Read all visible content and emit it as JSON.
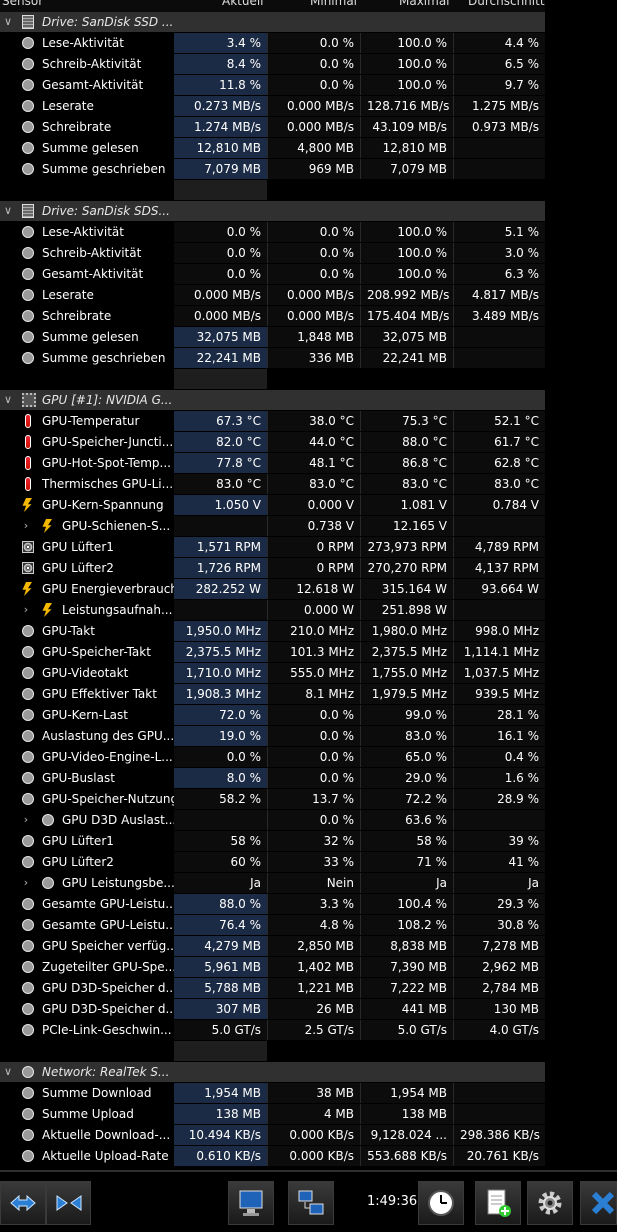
{
  "header": {
    "columns": [
      "Sensor",
      "Aktuell",
      "Minimal",
      "Maximal",
      "Durchschnitt"
    ]
  },
  "rows": [
    {
      "type": "header",
      "icon": "drive-icon",
      "label": "Drive: SanDisk SSD ...",
      "chev": "v"
    },
    {
      "type": "data",
      "icon": "clock-icon",
      "label": "Lese-Aktivität",
      "v": [
        "3.4 %",
        "0.0 %",
        "100.0 %",
        "4.4 %"
      ],
      "hl": true
    },
    {
      "type": "data",
      "icon": "clock-icon",
      "label": "Schreib-Aktivität",
      "v": [
        "8.4 %",
        "0.0 %",
        "100.0 %",
        "6.5 %"
      ],
      "hl": true
    },
    {
      "type": "data",
      "icon": "clock-icon",
      "label": "Gesamt-Aktivität",
      "v": [
        "11.8 %",
        "0.0 %",
        "100.0 %",
        "9.7 %"
      ],
      "hl": true
    },
    {
      "type": "data",
      "icon": "clock-icon",
      "label": "Leserate",
      "v": [
        "0.273 MB/s",
        "0.000 MB/s",
        "128.716 MB/s",
        "1.275 MB/s"
      ],
      "hl": true
    },
    {
      "type": "data",
      "icon": "clock-icon",
      "label": "Schreibrate",
      "v": [
        "1.274 MB/s",
        "0.000 MB/s",
        "43.109 MB/s",
        "0.973 MB/s"
      ],
      "hl": true
    },
    {
      "type": "data",
      "icon": "clock-icon",
      "label": "Summe gelesen",
      "v": [
        "12,810 MB",
        "4,800 MB",
        "12,810 MB",
        ""
      ],
      "hl": true
    },
    {
      "type": "data",
      "icon": "clock-icon",
      "label": "Summe geschrieben",
      "v": [
        "7,079 MB",
        "969 MB",
        "7,079 MB",
        ""
      ],
      "hl": true
    },
    {
      "type": "blank"
    },
    {
      "type": "header",
      "icon": "drive-icon",
      "label": "Drive: SanDisk SDS...",
      "chev": "v"
    },
    {
      "type": "data",
      "icon": "clock-icon",
      "label": "Lese-Aktivität",
      "v": [
        "0.0 %",
        "0.0 %",
        "100.0 %",
        "5.1 %"
      ]
    },
    {
      "type": "data",
      "icon": "clock-icon",
      "label": "Schreib-Aktivität",
      "v": [
        "0.0 %",
        "0.0 %",
        "100.0 %",
        "3.0 %"
      ]
    },
    {
      "type": "data",
      "icon": "clock-icon",
      "label": "Gesamt-Aktivität",
      "v": [
        "0.0 %",
        "0.0 %",
        "100.0 %",
        "6.3 %"
      ]
    },
    {
      "type": "data",
      "icon": "clock-icon",
      "label": "Leserate",
      "v": [
        "0.000 MB/s",
        "0.000 MB/s",
        "208.992 MB/s",
        "4.817 MB/s"
      ]
    },
    {
      "type": "data",
      "icon": "clock-icon",
      "label": "Schreibrate",
      "v": [
        "0.000 MB/s",
        "0.000 MB/s",
        "175.404 MB/s",
        "3.489 MB/s"
      ]
    },
    {
      "type": "data",
      "icon": "clock-icon",
      "label": "Summe gelesen",
      "v": [
        "32,075 MB",
        "1,848 MB",
        "32,075 MB",
        ""
      ],
      "hl": true
    },
    {
      "type": "data",
      "icon": "clock-icon",
      "label": "Summe geschrieben",
      "v": [
        "22,241 MB",
        "336 MB",
        "22,241 MB",
        ""
      ],
      "hl": true
    },
    {
      "type": "blank"
    },
    {
      "type": "header",
      "icon": "chip-icon",
      "label": "GPU [#1]: NVIDIA G...",
      "chev": "v"
    },
    {
      "type": "data",
      "icon": "thermometer-icon",
      "label": "GPU-Temperatur",
      "v": [
        "67.3 °C",
        "38.0 °C",
        "75.3 °C",
        "52.1 °C"
      ],
      "hl": true
    },
    {
      "type": "data",
      "icon": "thermometer-icon",
      "label": "GPU-Speicher-Juncti...",
      "v": [
        "82.0 °C",
        "44.0 °C",
        "88.0 °C",
        "61.7 °C"
      ],
      "hl": true
    },
    {
      "type": "data",
      "icon": "thermometer-icon",
      "label": "GPU-Hot-Spot-Temp...",
      "v": [
        "77.8 °C",
        "48.1 °C",
        "86.8 °C",
        "62.8 °C"
      ],
      "hl": true
    },
    {
      "type": "data",
      "icon": "thermometer-icon",
      "label": "Thermisches GPU-Li...",
      "v": [
        "83.0 °C",
        "83.0 °C",
        "83.0 °C",
        "83.0 °C"
      ]
    },
    {
      "type": "data",
      "icon": "voltage-icon",
      "label": "GPU-Kern-Spannung",
      "v": [
        "1.050 V",
        "0.000 V",
        "1.081 V",
        "0.784 V"
      ],
      "hl": true
    },
    {
      "type": "data",
      "icon": "voltage-icon",
      "label": "GPU-Schienen-S...",
      "v": [
        "",
        "0.738 V",
        "12.165 V",
        ""
      ],
      "sub": true
    },
    {
      "type": "data",
      "icon": "fan-icon",
      "label": "GPU Lüfter1",
      "v": [
        "1,571 RPM",
        "0 RPM",
        "273,973 RPM",
        "4,789 RPM"
      ],
      "hl": true
    },
    {
      "type": "data",
      "icon": "fan-icon",
      "label": "GPU Lüfter2",
      "v": [
        "1,726 RPM",
        "0 RPM",
        "270,270 RPM",
        "4,137 RPM"
      ],
      "hl": true
    },
    {
      "type": "data",
      "icon": "voltage-icon",
      "label": "GPU Energieverbrauch",
      "v": [
        "282.252 W",
        "12.618 W",
        "315.164 W",
        "93.664 W"
      ],
      "hl": true
    },
    {
      "type": "data",
      "icon": "voltage-icon",
      "label": "Leistungsaufnah...",
      "v": [
        "",
        "0.000 W",
        "251.898 W",
        ""
      ],
      "sub": true
    },
    {
      "type": "data",
      "icon": "clock-icon",
      "label": "GPU-Takt",
      "v": [
        "1,950.0 MHz",
        "210.0 MHz",
        "1,980.0 MHz",
        "998.0 MHz"
      ],
      "hl": true
    },
    {
      "type": "data",
      "icon": "clock-icon",
      "label": "GPU-Speicher-Takt",
      "v": [
        "2,375.5 MHz",
        "101.3 MHz",
        "2,375.5 MHz",
        "1,114.1 MHz"
      ],
      "hl": true
    },
    {
      "type": "data",
      "icon": "clock-icon",
      "label": "GPU-Videotakt",
      "v": [
        "1,710.0 MHz",
        "555.0 MHz",
        "1,755.0 MHz",
        "1,037.5 MHz"
      ],
      "hl": true
    },
    {
      "type": "data",
      "icon": "clock-icon",
      "label": "GPU Effektiver Takt",
      "v": [
        "1,908.3 MHz",
        "8.1 MHz",
        "1,979.5 MHz",
        "939.5 MHz"
      ],
      "hl": true
    },
    {
      "type": "data",
      "icon": "clock-icon",
      "label": "GPU-Kern-Last",
      "v": [
        "72.0 %",
        "0.0 %",
        "99.0 %",
        "28.1 %"
      ],
      "hl": true
    },
    {
      "type": "data",
      "icon": "clock-icon",
      "label": "Auslastung des GPU...",
      "v": [
        "19.0 %",
        "0.0 %",
        "83.0 %",
        "16.1 %"
      ],
      "hl": true
    },
    {
      "type": "data",
      "icon": "clock-icon",
      "label": "GPU-Video-Engine-L...",
      "v": [
        "0.0 %",
        "0.0 %",
        "65.0 %",
        "0.4 %"
      ]
    },
    {
      "type": "data",
      "icon": "clock-icon",
      "label": "GPU-Buslast",
      "v": [
        "8.0 %",
        "0.0 %",
        "29.0 %",
        "1.6 %"
      ],
      "hl": true
    },
    {
      "type": "data",
      "icon": "clock-icon",
      "label": "GPU-Speicher-Nutzung",
      "v": [
        "58.2 %",
        "13.7 %",
        "72.2 %",
        "28.9 %"
      ]
    },
    {
      "type": "data",
      "icon": "clock-icon",
      "label": "GPU D3D Auslast...",
      "v": [
        "",
        "0.0 %",
        "63.6 %",
        ""
      ],
      "sub": true
    },
    {
      "type": "data",
      "icon": "clock-icon",
      "label": "GPU Lüfter1",
      "v": [
        "58 %",
        "32 %",
        "58 %",
        "39 %"
      ]
    },
    {
      "type": "data",
      "icon": "clock-icon",
      "label": "GPU Lüfter2",
      "v": [
        "60 %",
        "33 %",
        "71 %",
        "41 %"
      ]
    },
    {
      "type": "data",
      "icon": "clock-icon",
      "label": "GPU Leistungsbe...",
      "v": [
        "Ja",
        "Nein",
        "Ja",
        "Ja"
      ],
      "sub": true
    },
    {
      "type": "data",
      "icon": "clock-icon",
      "label": "Gesamte GPU-Leistu...",
      "v": [
        "88.0 %",
        "3.3 %",
        "100.4 %",
        "29.3 %"
      ],
      "hl": true
    },
    {
      "type": "data",
      "icon": "clock-icon",
      "label": "Gesamte GPU-Leistu...",
      "v": [
        "76.4 %",
        "4.8 %",
        "108.2 %",
        "30.8 %"
      ],
      "hl": true
    },
    {
      "type": "data",
      "icon": "clock-icon",
      "label": "GPU Speicher verfüg...",
      "v": [
        "4,279 MB",
        "2,850 MB",
        "8,838 MB",
        "7,278 MB"
      ],
      "hl": true
    },
    {
      "type": "data",
      "icon": "clock-icon",
      "label": "Zugeteilter GPU-Spe...",
      "v": [
        "5,961 MB",
        "1,402 MB",
        "7,390 MB",
        "2,962 MB"
      ],
      "hl": true
    },
    {
      "type": "data",
      "icon": "clock-icon",
      "label": "GPU D3D-Speicher d...",
      "v": [
        "5,788 MB",
        "1,221 MB",
        "7,222 MB",
        "2,784 MB"
      ],
      "hl": true
    },
    {
      "type": "data",
      "icon": "clock-icon",
      "label": "GPU D3D-Speicher d...",
      "v": [
        "307 MB",
        "26 MB",
        "441 MB",
        "130 MB"
      ],
      "hl": true
    },
    {
      "type": "data",
      "icon": "clock-icon",
      "label": "PCIe-Link-Geschwin...",
      "v": [
        "5.0 GT/s",
        "2.5 GT/s",
        "5.0 GT/s",
        "4.0 GT/s"
      ]
    },
    {
      "type": "blank"
    },
    {
      "type": "header",
      "icon": "network-icon",
      "label": "Network: RealTek S...",
      "chev": "v"
    },
    {
      "type": "data",
      "icon": "clock-icon",
      "label": "Summe Download",
      "v": [
        "1,954 MB",
        "38 MB",
        "1,954 MB",
        ""
      ],
      "hl": true
    },
    {
      "type": "data",
      "icon": "clock-icon",
      "label": "Summe Upload",
      "v": [
        "138 MB",
        "4 MB",
        "138 MB",
        ""
      ],
      "hl": true
    },
    {
      "type": "data",
      "icon": "clock-icon",
      "label": "Aktuelle Download-...",
      "v": [
        "10.494 KB/s",
        "0.000 KB/s",
        "9,128.024 ...",
        "298.386 KB/s"
      ],
      "hl": true
    },
    {
      "type": "data",
      "icon": "clock-icon",
      "label": "Aktuelle Upload-Rate",
      "v": [
        "0.610 KB/s",
        "0.000 KB/s",
        "553.688 KB/s",
        "20.761 KB/s"
      ],
      "hl": true
    }
  ],
  "toolbar": {
    "time": "1:49:36",
    "buttons": [
      "expand-arrows-icon",
      "collapse-arrows-icon",
      "monitor-icon",
      "network-computers-icon",
      "clock-icon",
      "report-add-icon",
      "settings-gear-icon",
      "close-icon"
    ]
  },
  "colors": {
    "highlight": "#1b2b45",
    "header_row": "#303030",
    "cell_bg": "#0c0c0c"
  }
}
